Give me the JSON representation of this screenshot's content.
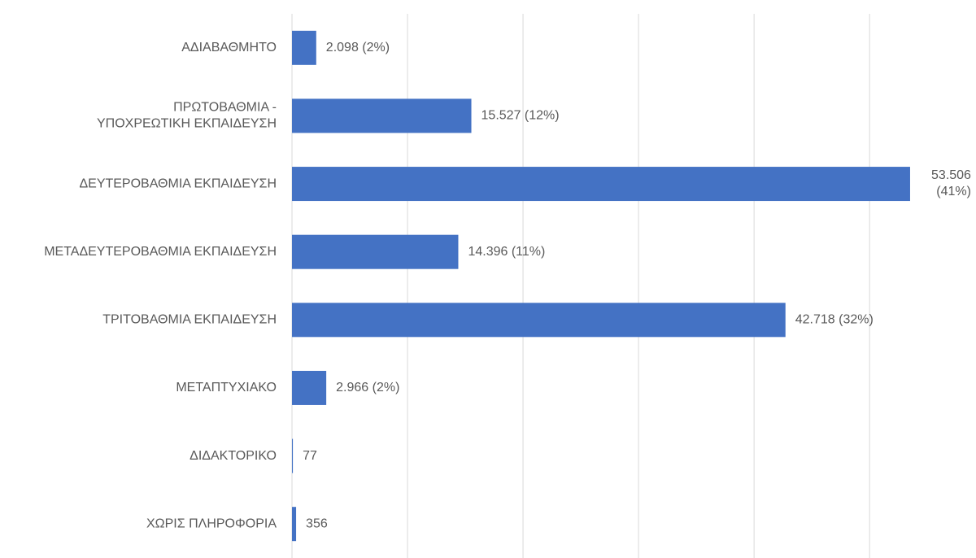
{
  "chart_data": {
    "type": "barh",
    "categories": [
      "ΑΔΙΑΒΑΘΜΗΤΟ",
      "ΠΡΩΤΟΒΑΘΜΙΑ -\nΥΠΟΧΡΕΩΤΙΚΗ ΕΚΠΑΙΔΕΥΣΗ",
      "ΔΕΥΤΕΡΟΒΑΘΜΙΑ ΕΚΠΑΙΔΕΥΣΗ",
      "ΜΕΤΑΔΕΥΤΕΡΟΒΑΘΜΙΑ ΕΚΠΑΙΔΕΥΣΗ",
      "ΤΡΙΤΟΒΑΘΜΙΑ ΕΚΠΑΙΔΕΥΣΗ",
      "ΜΕΤΑΠΤΥΧΙΑΚΟ",
      "ΔΙΔΑΚΤΟΡΙΚΟ",
      "ΧΩΡΙΣ ΠΛΗΡΟΦΟΡΙΑ"
    ],
    "values": [
      2098,
      15527,
      53506,
      14396,
      42718,
      2966,
      77,
      356
    ],
    "value_labels": [
      "2.098 (2%)",
      "15.527 (12%)",
      "53.506\n(41%)",
      "14.396 (11%)",
      "42.718 (32%)",
      "2.966 (2%)",
      "77",
      "356"
    ],
    "color": "#4472c4",
    "xlim": [
      0,
      59000
    ],
    "xticks": [
      0,
      10000,
      20000,
      30000,
      40000,
      50000
    ],
    "grid": true
  }
}
